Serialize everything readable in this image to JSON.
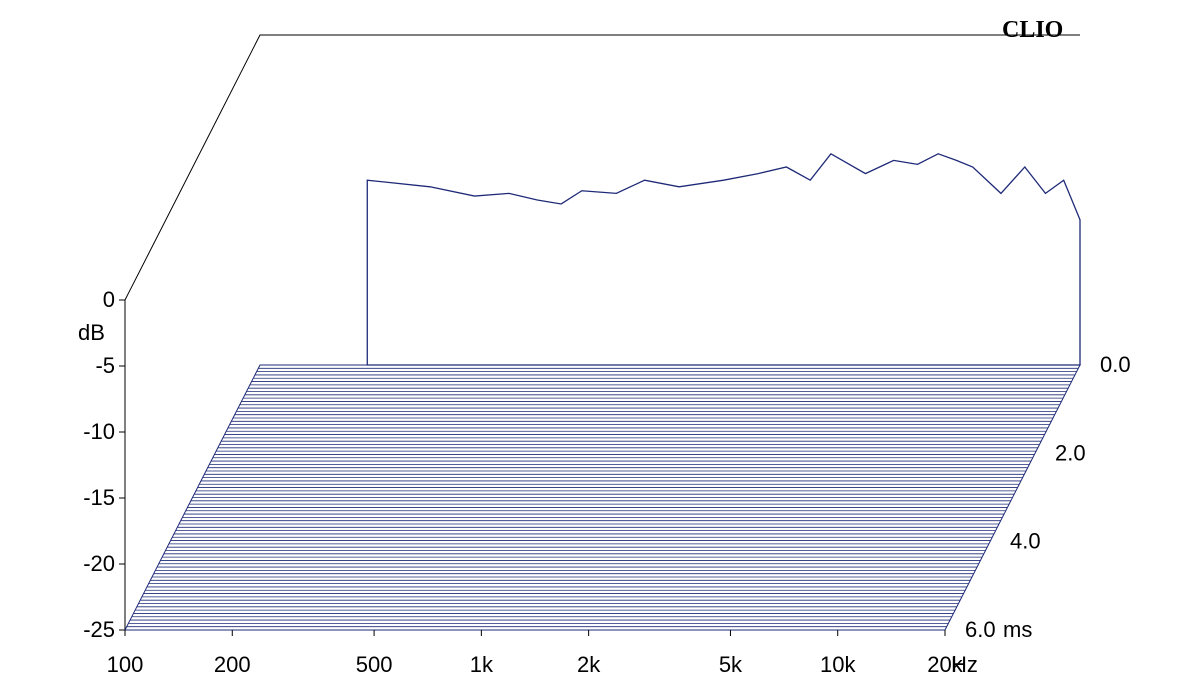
{
  "chart_data": {
    "type": "waterfall",
    "brand": "CLIO",
    "colors": {
      "line": "#1e2a78",
      "floor": "#1e2a78",
      "frame": "#000000",
      "paper": "#ffffff"
    },
    "x_axis": {
      "scale": "log",
      "range": [
        100,
        20000
      ],
      "ticks": [
        "100",
        "200",
        "500",
        "1k",
        "2k",
        "5k",
        "10k",
        "20k"
      ],
      "tick_values": [
        100,
        200,
        500,
        1000,
        2000,
        5000,
        10000,
        20000
      ],
      "unit_label": "Hz"
    },
    "y_axis": {
      "range": [
        -25,
        0
      ],
      "ticks": [
        "0",
        "-5",
        "-10",
        "-15",
        "-20",
        "-25"
      ],
      "tick_values": [
        0,
        -5,
        -10,
        -15,
        -20,
        -25
      ],
      "unit_label": "dB"
    },
    "z_axis": {
      "range": [
        0,
        6
      ],
      "ticks": [
        "0.0",
        "2.0",
        "4.0",
        "6.0"
      ],
      "tick_values": [
        0,
        2,
        4,
        6
      ],
      "unit_label": "ms"
    },
    "series": [
      {
        "z": 0.0,
        "points": [
          [
            200,
            -11
          ],
          [
            300,
            -11.5
          ],
          [
            400,
            -12.2
          ],
          [
            500,
            -12
          ],
          [
            600,
            -12.5
          ],
          [
            700,
            -12.8
          ],
          [
            800,
            -11.8
          ],
          [
            1000,
            -12
          ],
          [
            1200,
            -11
          ],
          [
            1500,
            -11.5
          ],
          [
            2000,
            -11
          ],
          [
            2500,
            -10.5
          ],
          [
            3000,
            -10
          ],
          [
            3500,
            -11
          ],
          [
            4000,
            -9
          ],
          [
            5000,
            -10.5
          ],
          [
            6000,
            -9.5
          ],
          [
            7000,
            -9.8
          ],
          [
            8000,
            -9
          ],
          [
            9000,
            -9.5
          ],
          [
            10000,
            -10
          ],
          [
            12000,
            -12
          ],
          [
            14000,
            -10
          ],
          [
            16000,
            -12
          ],
          [
            18000,
            -11
          ],
          [
            20000,
            -14
          ]
        ]
      }
    ]
  }
}
